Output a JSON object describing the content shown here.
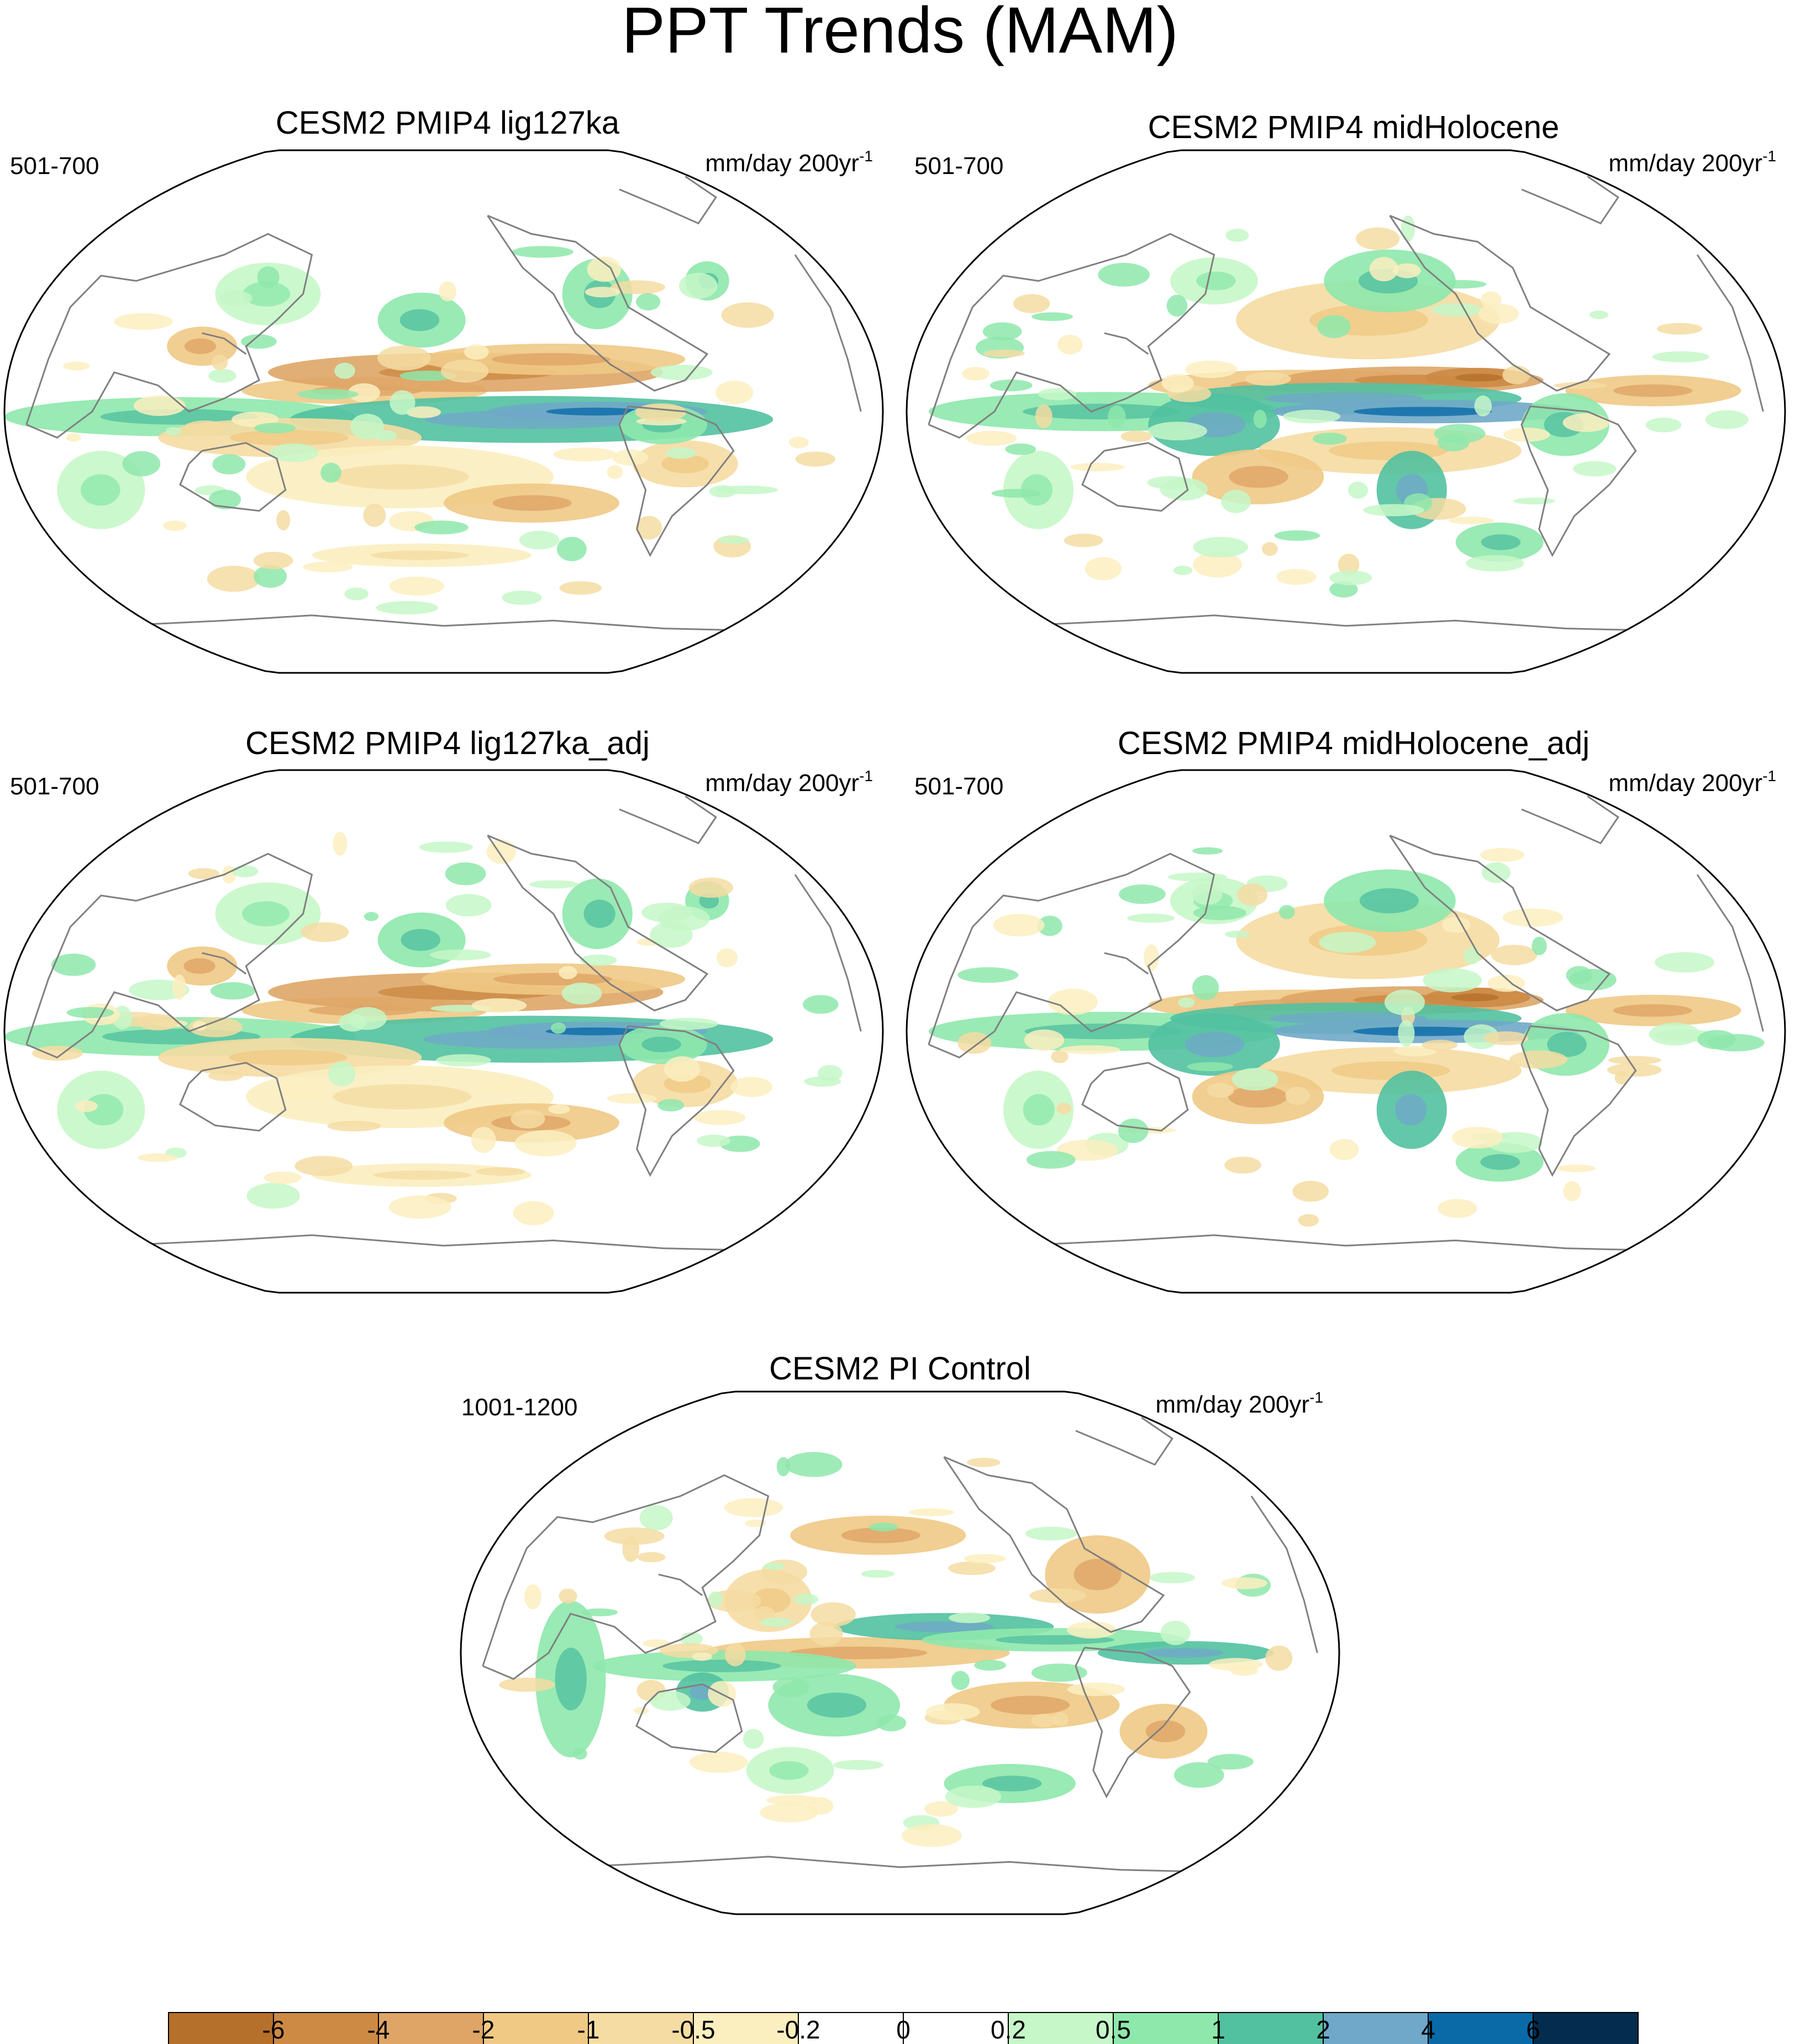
{
  "title": "PPT Trends (MAM)",
  "panels": [
    {
      "title": "CESM2 PMIP4 lig127ka",
      "period": "501-700",
      "units_main": "mm/day 200yr",
      "units_sup": "-1"
    },
    {
      "title": "CESM2 PMIP4 midHolocene",
      "period": "501-700",
      "units_main": "mm/day 200yr",
      "units_sup": "-1"
    },
    {
      "title": "CESM2 PMIP4 lig127ka_adj",
      "period": "501-700",
      "units_main": "mm/day 200yr",
      "units_sup": "-1"
    },
    {
      "title": "CESM2 PMIP4 midHolocene_adj",
      "period": "501-700",
      "units_main": "mm/day 200yr",
      "units_sup": "-1"
    },
    {
      "title": "CESM2 PI Control",
      "period": "1001-1200",
      "units_main": "mm/day 200yr",
      "units_sup": "-1"
    }
  ],
  "colorbar": {
    "labels": [
      "-6",
      "-4",
      "-2",
      "-1",
      "-0.5",
      "-0.2",
      "0",
      "0.2",
      "0.5",
      "1",
      "2",
      "4",
      "6"
    ],
    "colors": [
      "#b5702b",
      "#cc8a45",
      "#dea566",
      "#f0c985",
      "#f5dca2",
      "#fbeebf",
      "#ffffff",
      "#ffffff",
      "#c6f7c8",
      "#8ee8ac",
      "#52c1a0",
      "#6fa8c8",
      "#0a6aa8",
      "#032c4e"
    ]
  },
  "colors": {
    "coast": "#808080",
    "frame": "#000000"
  }
}
